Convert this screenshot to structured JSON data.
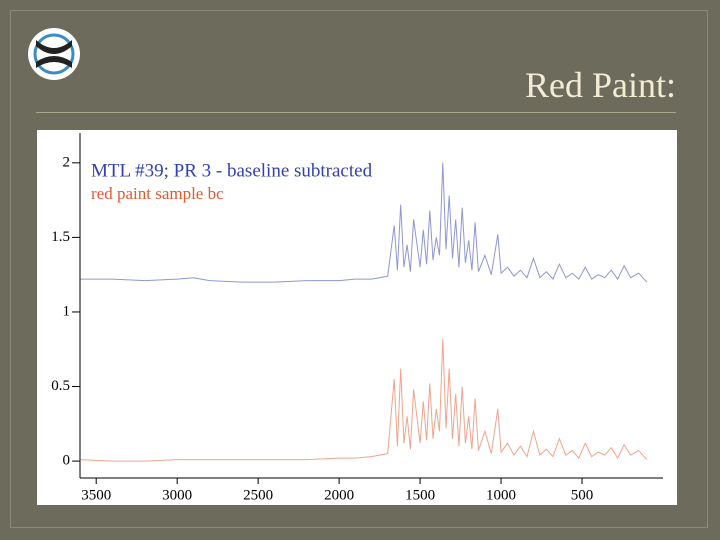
{
  "slide": {
    "title": "Red Paint:"
  },
  "chart_data": {
    "type": "line",
    "x": [
      3600,
      3400,
      3200,
      3000,
      2900,
      2800,
      2600,
      2400,
      2200,
      2000,
      1900,
      1800,
      1750,
      1700,
      1660,
      1640,
      1620,
      1600,
      1580,
      1560,
      1540,
      1500,
      1480,
      1460,
      1440,
      1420,
      1400,
      1380,
      1360,
      1340,
      1320,
      1300,
      1280,
      1260,
      1240,
      1220,
      1200,
      1180,
      1160,
      1140,
      1100,
      1060,
      1020,
      1000,
      960,
      920,
      880,
      840,
      800,
      760,
      720,
      680,
      640,
      600,
      560,
      520,
      480,
      440,
      400,
      360,
      320,
      280,
      240,
      200,
      150,
      100
    ],
    "series": [
      {
        "name": "MTL #39; PR 3 - baseline subtracted",
        "color": "#3340b0",
        "values": [
          1.22,
          1.22,
          1.21,
          1.22,
          1.23,
          1.21,
          1.2,
          1.2,
          1.21,
          1.21,
          1.22,
          1.22,
          1.23,
          1.24,
          1.58,
          1.28,
          1.72,
          1.3,
          1.45,
          1.27,
          1.62,
          1.3,
          1.55,
          1.32,
          1.68,
          1.35,
          1.5,
          1.38,
          2.0,
          1.42,
          1.78,
          1.36,
          1.62,
          1.3,
          1.7,
          1.33,
          1.48,
          1.28,
          1.6,
          1.27,
          1.38,
          1.25,
          1.52,
          1.26,
          1.3,
          1.24,
          1.28,
          1.23,
          1.36,
          1.23,
          1.27,
          1.22,
          1.32,
          1.23,
          1.26,
          1.22,
          1.3,
          1.22,
          1.25,
          1.23,
          1.28,
          1.22,
          1.31,
          1.23,
          1.26,
          1.2
        ]
      },
      {
        "name": "red paint sample bc",
        "color": "#e4592f",
        "values": [
          0.01,
          0.0,
          0.0,
          0.01,
          0.01,
          0.01,
          0.01,
          0.01,
          0.01,
          0.02,
          0.02,
          0.03,
          0.04,
          0.05,
          0.55,
          0.1,
          0.62,
          0.12,
          0.3,
          0.08,
          0.48,
          0.12,
          0.4,
          0.14,
          0.52,
          0.15,
          0.35,
          0.2,
          0.82,
          0.22,
          0.62,
          0.15,
          0.45,
          0.1,
          0.5,
          0.12,
          0.3,
          0.08,
          0.42,
          0.07,
          0.2,
          0.05,
          0.35,
          0.06,
          0.12,
          0.04,
          0.1,
          0.03,
          0.2,
          0.04,
          0.08,
          0.03,
          0.15,
          0.04,
          0.07,
          0.02,
          0.12,
          0.03,
          0.06,
          0.04,
          0.09,
          0.02,
          0.11,
          0.04,
          0.07,
          0.01
        ]
      }
    ],
    "xlim": [
      3600,
      0
    ],
    "xticks": [
      3500,
      3000,
      2500,
      2000,
      1500,
      1000,
      500
    ],
    "ylim": [
      -0.1,
      2.2
    ],
    "yticks": [
      0,
      0.5,
      1,
      1.5,
      2
    ]
  }
}
